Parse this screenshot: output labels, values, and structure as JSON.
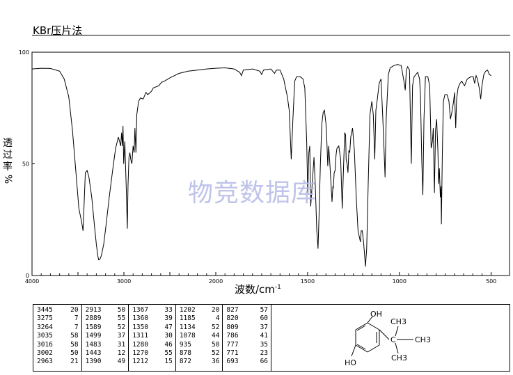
{
  "title": "KBr压片法",
  "watermark": "物竞数据库",
  "chart_data": {
    "type": "line",
    "ylabel": "透过率%",
    "xlabel": "波数/cm",
    "xlabel_sup": "-1",
    "xlim": [
      4000,
      400
    ],
    "ylim": [
      0,
      100
    ],
    "x_ticks": [
      "4000",
      "3000",
      "2000",
      "1500",
      "1000",
      "500"
    ],
    "y_ticks": [
      "100",
      "50",
      "0"
    ],
    "series": [
      {
        "points": [
          [
            4000,
            92.5
          ],
          [
            3900,
            92.8
          ],
          [
            3800,
            92.7
          ],
          [
            3700,
            91.5
          ],
          [
            3650,
            88
          ],
          [
            3600,
            80
          ],
          [
            3560,
            65
          ],
          [
            3520,
            45
          ],
          [
            3490,
            30
          ],
          [
            3460,
            24
          ],
          [
            3445,
            20
          ],
          [
            3420,
            46
          ],
          [
            3400,
            47
          ],
          [
            3380,
            44
          ],
          [
            3350,
            35
          ],
          [
            3320,
            22
          ],
          [
            3300,
            14
          ],
          [
            3285,
            9
          ],
          [
            3275,
            7
          ],
          [
            3264,
            7
          ],
          [
            3245,
            9
          ],
          [
            3220,
            14
          ],
          [
            3190,
            24
          ],
          [
            3160,
            35
          ],
          [
            3120,
            48
          ],
          [
            3090,
            57
          ],
          [
            3060,
            62
          ],
          [
            3035,
            58
          ],
          [
            3025,
            64
          ],
          [
            3016,
            58
          ],
          [
            3010,
            67
          ],
          [
            3002,
            50
          ],
          [
            2990,
            60
          ],
          [
            2975,
            40
          ],
          [
            2963,
            21
          ],
          [
            2955,
            40
          ],
          [
            2945,
            53
          ],
          [
            2935,
            55
          ],
          [
            2925,
            52
          ],
          [
            2913,
            50
          ],
          [
            2900,
            58
          ],
          [
            2889,
            55
          ],
          [
            2880,
            66
          ],
          [
            2869,
            55
          ],
          [
            2860,
            72
          ],
          [
            2840,
            78
          ],
          [
            2820,
            79.5
          ],
          [
            2790,
            79
          ],
          [
            2760,
            82
          ],
          [
            2740,
            81
          ],
          [
            2700,
            82.5
          ],
          [
            2680,
            84
          ],
          [
            2620,
            85
          ],
          [
            2590,
            86.5
          ],
          [
            2560,
            87
          ],
          [
            2500,
            88.5
          ],
          [
            2450,
            89.5
          ],
          [
            2400,
            90.5
          ],
          [
            2300,
            91.5
          ],
          [
            2200,
            92
          ],
          [
            2100,
            92.5
          ],
          [
            2000,
            92.8
          ],
          [
            1950,
            93
          ],
          [
            1900,
            92.5
          ],
          [
            1870,
            91
          ],
          [
            1860,
            89.5
          ],
          [
            1850,
            92
          ],
          [
            1800,
            92.5
          ],
          [
            1760,
            91.5
          ],
          [
            1750,
            90
          ],
          [
            1740,
            92
          ],
          [
            1700,
            92.5
          ],
          [
            1680,
            90.5
          ],
          [
            1670,
            92
          ],
          [
            1650,
            92
          ],
          [
            1630,
            88
          ],
          [
            1620,
            84
          ],
          [
            1610,
            80
          ],
          [
            1600,
            74
          ],
          [
            1589,
            52
          ],
          [
            1580,
            70
          ],
          [
            1570,
            87
          ],
          [
            1560,
            89
          ],
          [
            1540,
            89
          ],
          [
            1525,
            88
          ],
          [
            1515,
            84
          ],
          [
            1505,
            60
          ],
          [
            1499,
            37
          ],
          [
            1493,
            55
          ],
          [
            1488,
            58
          ],
          [
            1483,
            31
          ],
          [
            1470,
            47
          ],
          [
            1465,
            53
          ],
          [
            1458,
            40
          ],
          [
            1450,
            20
          ],
          [
            1443,
            12
          ],
          [
            1438,
            25
          ],
          [
            1430,
            50
          ],
          [
            1422,
            68
          ],
          [
            1415,
            73
          ],
          [
            1408,
            74
          ],
          [
            1400,
            68
          ],
          [
            1395,
            60
          ],
          [
            1390,
            49
          ],
          [
            1385,
            58
          ],
          [
            1380,
            52
          ],
          [
            1373,
            42
          ],
          [
            1367,
            33
          ],
          [
            1362,
            40
          ],
          [
            1360,
            39
          ],
          [
            1355,
            46
          ],
          [
            1350,
            47
          ],
          [
            1345,
            54
          ],
          [
            1340,
            57
          ],
          [
            1330,
            58
          ],
          [
            1320,
            52
          ],
          [
            1311,
            30
          ],
          [
            1305,
            46
          ],
          [
            1298,
            64
          ],
          [
            1293,
            63
          ],
          [
            1290,
            52
          ],
          [
            1285,
            50
          ],
          [
            1280,
            46
          ],
          [
            1275,
            56
          ],
          [
            1270,
            55
          ],
          [
            1265,
            62
          ],
          [
            1255,
            66
          ],
          [
            1245,
            56
          ],
          [
            1235,
            35
          ],
          [
            1225,
            20
          ],
          [
            1212,
            15
          ],
          [
            1208,
            20
          ],
          [
            1202,
            20
          ],
          [
            1195,
            15
          ],
          [
            1190,
            10
          ],
          [
            1185,
            4
          ],
          [
            1178,
            12
          ],
          [
            1170,
            40
          ],
          [
            1160,
            72
          ],
          [
            1150,
            78
          ],
          [
            1142,
            72
          ],
          [
            1134,
            52
          ],
          [
            1128,
            74
          ],
          [
            1120,
            79
          ],
          [
            1110,
            86
          ],
          [
            1100,
            88
          ],
          [
            1090,
            70
          ],
          [
            1085,
            60
          ],
          [
            1078,
            44
          ],
          [
            1072,
            70
          ],
          [
            1060,
            90
          ],
          [
            1050,
            93
          ],
          [
            1030,
            94
          ],
          [
            1010,
            94.5
          ],
          [
            990,
            94
          ],
          [
            975,
            87
          ],
          [
            968,
            83
          ],
          [
            962,
            92
          ],
          [
            955,
            93.5
          ],
          [
            945,
            92
          ],
          [
            935,
            50
          ],
          [
            928,
            85
          ],
          [
            920,
            89
          ],
          [
            910,
            90
          ],
          [
            900,
            91
          ],
          [
            890,
            88
          ],
          [
            885,
            80
          ],
          [
            878,
            52
          ],
          [
            872,
            36
          ],
          [
            866,
            70
          ],
          [
            858,
            89
          ],
          [
            845,
            89
          ],
          [
            835,
            85
          ],
          [
            827,
            57
          ],
          [
            820,
            60
          ],
          [
            815,
            66
          ],
          [
            809,
            37
          ],
          [
            803,
            65
          ],
          [
            797,
            70
          ],
          [
            790,
            56
          ],
          [
            786,
            41
          ],
          [
            782,
            48
          ],
          [
            777,
            35
          ],
          [
            773,
            40
          ],
          [
            771,
            23
          ],
          [
            766,
            55
          ],
          [
            760,
            78
          ],
          [
            752,
            81
          ],
          [
            740,
            81
          ],
          [
            730,
            78
          ],
          [
            722,
            70
          ],
          [
            712,
            74
          ],
          [
            705,
            78
          ],
          [
            699,
            82
          ],
          [
            693,
            66
          ],
          [
            688,
            79
          ],
          [
            680,
            84
          ],
          [
            670,
            86
          ],
          [
            660,
            87
          ],
          [
            645,
            85
          ],
          [
            630,
            88
          ],
          [
            610,
            89
          ],
          [
            598,
            89
          ],
          [
            590,
            86
          ],
          [
            582,
            89.5
          ],
          [
            575,
            88
          ],
          [
            565,
            84
          ],
          [
            557,
            79
          ],
          [
            550,
            85
          ],
          [
            540,
            90
          ],
          [
            530,
            91.5
          ],
          [
            520,
            92
          ],
          [
            510,
            90
          ],
          [
            500,
            89.5
          ]
        ]
      }
    ]
  },
  "peak_table": [
    [
      [
        "3445",
        "20"
      ],
      [
        "3275",
        "7"
      ],
      [
        "3264",
        "7"
      ],
      [
        "3035",
        "58"
      ],
      [
        "3016",
        "58"
      ],
      [
        "3002",
        "50"
      ],
      [
        "2963",
        "21"
      ]
    ],
    [
      [
        "2913",
        "50"
      ],
      [
        "2889",
        "55"
      ],
      [
        "1589",
        "52"
      ],
      [
        "1499",
        "37"
      ],
      [
        "1483",
        "31"
      ],
      [
        "1443",
        "12"
      ],
      [
        "1390",
        "49"
      ]
    ],
    [
      [
        "1367",
        "33"
      ],
      [
        "1360",
        "39"
      ],
      [
        "1350",
        "47"
      ],
      [
        "1311",
        "30"
      ],
      [
        "1280",
        "46"
      ],
      [
        "1270",
        "55"
      ],
      [
        "1212",
        "15"
      ]
    ],
    [
      [
        "1202",
        "20"
      ],
      [
        "1185",
        "4"
      ],
      [
        "1134",
        "52"
      ],
      [
        "1078",
        "44"
      ],
      [
        "935",
        "50"
      ],
      [
        "878",
        "52"
      ],
      [
        "872",
        "36"
      ]
    ],
    [
      [
        "827",
        "57"
      ],
      [
        "820",
        "60"
      ],
      [
        "809",
        "37"
      ],
      [
        "786",
        "41"
      ],
      [
        "777",
        "35"
      ],
      [
        "771",
        "23"
      ],
      [
        "693",
        "66"
      ]
    ]
  ],
  "structure": {
    "oh_top": "OH",
    "oh_bottom": "HO",
    "ch3_top": "CH3",
    "ch3_right": "CH3",
    "ch3_bottom": "CH3",
    "c": "C"
  }
}
